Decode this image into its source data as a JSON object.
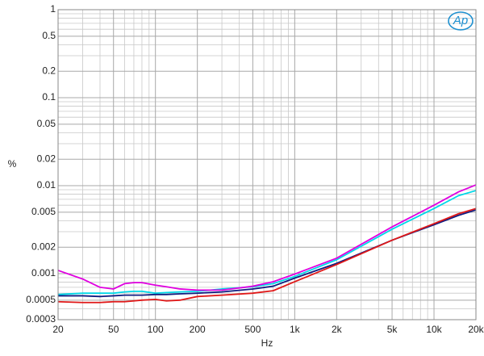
{
  "chart_data": {
    "type": "line",
    "logo": "Ap",
    "xlabel": "Hz",
    "ylabel": "%",
    "xscale": "log",
    "yscale": "log",
    "grid": true,
    "minor_grid": true,
    "xlim": [
      20,
      20000
    ],
    "ylim": [
      0.0003,
      1
    ],
    "xticks": [
      20,
      50,
      100,
      200,
      500,
      {
        "value": 1000,
        "label": "1k"
      },
      {
        "value": 2000,
        "label": "2k"
      },
      {
        "value": 5000,
        "label": "5k"
      },
      {
        "value": 10000,
        "label": "10k"
      },
      {
        "value": 20000,
        "label": "20k"
      }
    ],
    "yticks": [
      1,
      0.5,
      0.2,
      0.1,
      0.05,
      0.02,
      0.01,
      0.005,
      0.002,
      0.001,
      0.0005,
      0.0003
    ],
    "x": [
      20,
      30,
      40,
      50,
      60,
      70,
      80,
      100,
      120,
      150,
      200,
      300,
      500,
      700,
      1000,
      2000,
      5000,
      10000,
      15000,
      20000
    ],
    "series": [
      {
        "color": "#00d8e8",
        "values": [
          0.00058,
          0.0006,
          0.0006,
          0.0006,
          0.00062,
          0.00063,
          0.00063,
          0.0006,
          0.00061,
          0.00062,
          0.00063,
          0.00067,
          0.00071,
          0.00077,
          0.00093,
          0.00144,
          0.0032,
          0.0055,
          0.0077,
          0.0088
        ]
      },
      {
        "color": "#e000e0",
        "values": [
          0.00109,
          0.00087,
          0.0007,
          0.00067,
          0.00077,
          0.00079,
          0.00079,
          0.00074,
          0.00071,
          0.00067,
          0.00065,
          0.00065,
          0.00072,
          0.00081,
          0.00099,
          0.0015,
          0.0034,
          0.006,
          0.0085,
          0.0102
        ]
      },
      {
        "color": "#101c80",
        "values": [
          0.00056,
          0.00056,
          0.00055,
          0.00056,
          0.00057,
          0.00057,
          0.00057,
          0.00058,
          0.00058,
          0.00059,
          0.0006,
          0.00062,
          0.00067,
          0.00072,
          0.00089,
          0.00131,
          0.0024,
          0.0036,
          0.0046,
          0.0053
        ]
      },
      {
        "color": "#e01818",
        "values": [
          0.00048,
          0.00047,
          0.00047,
          0.00048,
          0.00048,
          0.00049,
          0.0005,
          0.00051,
          0.00049,
          0.0005,
          0.00055,
          0.00057,
          0.0006,
          0.00064,
          0.00081,
          0.00127,
          0.0024,
          0.0037,
          0.0048,
          0.0055
        ]
      }
    ]
  }
}
